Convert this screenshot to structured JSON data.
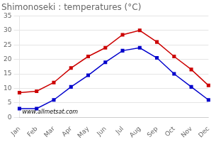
{
  "chart_data": {
    "type": "line",
    "title": "Shimonoseki : temperatures (°C)",
    "categories": [
      "Jan",
      "Feb",
      "Mar",
      "Apr",
      "May",
      "Jun",
      "Jul",
      "Aug",
      "Sep",
      "Oct",
      "Nov",
      "Dec"
    ],
    "series": [
      {
        "color": "#cc0000",
        "values": [
          8.5,
          9.0,
          12.0,
          17.0,
          21.0,
          24.0,
          28.5,
          30.0,
          26.0,
          21.0,
          16.5,
          11.0
        ]
      },
      {
        "color": "#0000cc",
        "values": [
          3.0,
          3.0,
          6.0,
          10.5,
          14.5,
          19.0,
          23.0,
          24.0,
          20.5,
          15.0,
          10.5,
          6.0
        ]
      }
    ],
    "ylim": [
      0,
      35
    ],
    "yticks": [
      0,
      5,
      10,
      15,
      20,
      25,
      30,
      35
    ],
    "grid": true,
    "marker": "square",
    "line_style": "solid",
    "annotations": [
      "www.allmetsat.com"
    ]
  }
}
